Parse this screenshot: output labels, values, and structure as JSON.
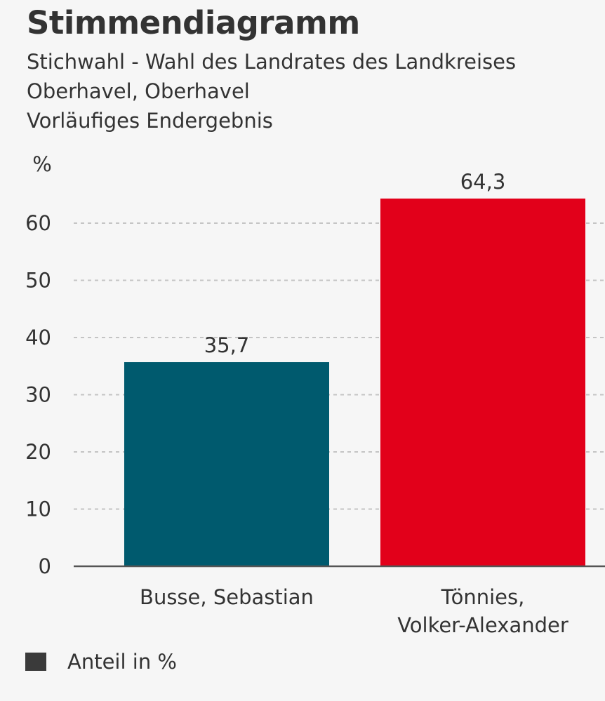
{
  "header": {
    "title": "Stimmendiagramm",
    "subtitle_lines": [
      "Stichwahl - Wahl des Landrates des Landkreises",
      "Oberhavel, Oberhavel",
      "Vorläufiges Endergebnis"
    ]
  },
  "legend": {
    "label": "Anteil in %",
    "color": "#3a3a3a"
  },
  "chart_data": {
    "type": "bar",
    "title": "Stimmendiagramm",
    "ylabel": "%",
    "xlabel": "",
    "ylim": [
      0,
      70
    ],
    "yticks": [
      0,
      10,
      20,
      30,
      40,
      50,
      60
    ],
    "grid": true,
    "legend_position": "bottom-left",
    "categories": [
      [
        "Busse, Sebastian"
      ],
      [
        "Tönnies,",
        "Volker-Alexander"
      ]
    ],
    "values": [
      35.7,
      64.3
    ],
    "value_labels": [
      "35,7",
      "64,3"
    ],
    "colors": [
      "#005a6e",
      "#e2001a"
    ],
    "series": [
      {
        "name": "Anteil in %",
        "values": [
          35.7,
          64.3
        ]
      }
    ]
  }
}
